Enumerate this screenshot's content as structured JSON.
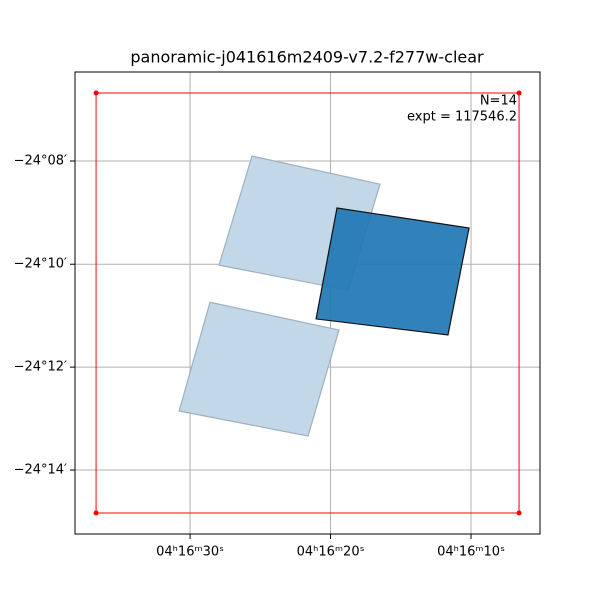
{
  "chart_data": {
    "type": "footprint",
    "title": "panoramic-j041616m2409-v7.2-f277w-clear",
    "annotations": [
      "N=14",
      "expt = 117546.2"
    ],
    "xlim": [
      38.19,
      5.09
    ],
    "xticks": [
      {
        "value": 30,
        "label": "04ʰ16ᵐ30ˢ"
      },
      {
        "value": 20,
        "label": "04ʰ16ᵐ20ˢ"
      },
      {
        "value": 10,
        "label": "04ʰ16ᵐ10ˢ"
      }
    ],
    "ylim": [
      -24.254,
      -24.1045
    ],
    "yticks": [
      {
        "value": -24.1333,
        "label": "−24°08′"
      },
      {
        "value": -24.1667,
        "label": "−24°10′"
      },
      {
        "value": -24.2,
        "label": "−24°12′"
      },
      {
        "value": -24.2333,
        "label": "−24°14′"
      }
    ],
    "grid": true,
    "shapes": [
      {
        "x": [
          25.59,
          16.48,
          18.75,
          27.94
        ],
        "y": [
          -24.1317,
          -24.1408,
          -24.1751,
          -24.167
        ],
        "color": "#c2d7e8",
        "edge": "#9fb0c0"
      },
      {
        "x": [
          28.58,
          19.4,
          21.6,
          30.78
        ],
        "y": [
          -24.179,
          -24.188,
          -24.2223,
          -24.2142
        ],
        "color": "#c2d7e8",
        "edge": "#9fb0c0"
      },
      {
        "x": [
          19.54,
          10.14,
          11.64,
          21.03
        ],
        "y": [
          -24.1485,
          -24.155,
          -24.1896,
          -24.1844
        ],
        "color": "rgba(31,119,180,0.92)",
        "edge": "#111111"
      }
    ],
    "boundary": {
      "x": [
        36.69,
        6.58,
        6.58,
        36.69
      ],
      "y": [
        -24.1113,
        -24.1113,
        -24.2472,
        -24.2472
      ],
      "color": "#ff0000"
    }
  }
}
